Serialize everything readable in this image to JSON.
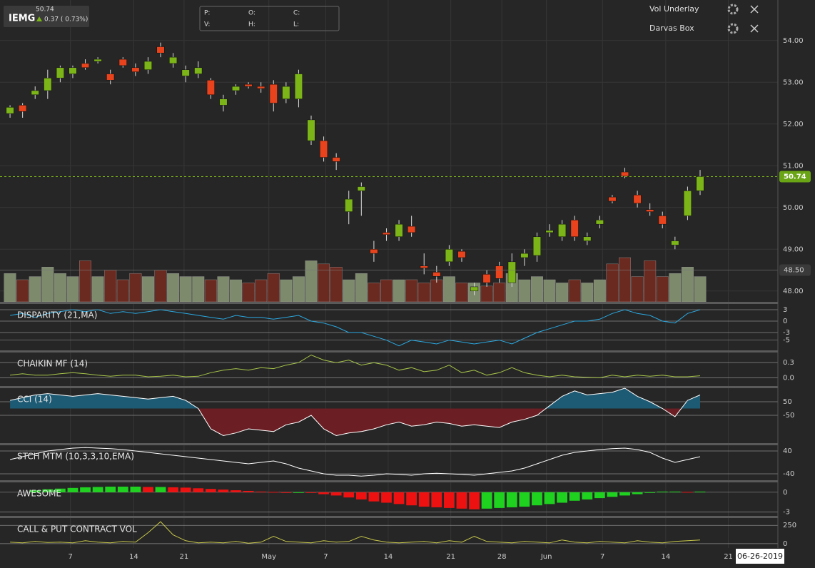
{
  "header": {
    "last": "50.74",
    "ticker": "IEMG",
    "change": "0.37 ( 0.73%)"
  },
  "ohlc_labels": [
    "P:",
    "O:",
    "C:",
    "V:",
    "H:",
    "L:"
  ],
  "studies": [
    "Vol Underlay",
    "Darvas Box"
  ],
  "date": "06-26-2019",
  "chart": {
    "type": "candlestick",
    "grid": true,
    "ylim": [
      47.74,
      54.97
    ],
    "yticks": [
      {
        "value": 54,
        "label": "54.00"
      },
      {
        "value": 53,
        "label": "53.00"
      },
      {
        "value": 52,
        "label": "52.00"
      },
      {
        "value": 51,
        "label": "51.00"
      },
      {
        "value": 50,
        "label": "50.00"
      },
      {
        "value": 49,
        "label": "49.00"
      },
      {
        "value": 48,
        "label": "48.00"
      }
    ],
    "xlim": [
      -0.8,
      61.2
    ],
    "xticks": [
      {
        "value": 4.81,
        "label": "7"
      },
      {
        "value": 9.86,
        "label": "14"
      },
      {
        "value": 13.87,
        "label": "21"
      },
      {
        "value": 20.63,
        "label": "May"
      },
      {
        "value": 25.16,
        "label": "7"
      },
      {
        "value": 30.14,
        "label": "14"
      },
      {
        "value": 35.13,
        "label": "21"
      },
      {
        "value": 39.2,
        "label": "28"
      },
      {
        "value": 42.75,
        "label": "Jun"
      },
      {
        "value": 47.22,
        "label": "7"
      },
      {
        "value": 52.26,
        "label": "14"
      },
      {
        "value": 57.25,
        "label": "21"
      }
    ],
    "up_color": "#7cb518",
    "down_color": "#e8431c",
    "volume_up_color": "#7d8a6c",
    "volume_down_color": "#6b2a20",
    "last_price": {
      "value": 50.74,
      "label": "50.74"
    },
    "marker": {
      "value": 48.5,
      "label": "48.50"
    },
    "candles": [
      [
        52.25,
        52.45,
        52.15,
        52.4
      ],
      [
        52.45,
        52.5,
        52.15,
        52.3
      ],
      [
        52.7,
        52.9,
        52.6,
        52.8
      ],
      [
        52.8,
        53.3,
        52.6,
        53.1
      ],
      [
        53.1,
        53.4,
        53.0,
        53.35
      ],
      [
        53.2,
        53.4,
        53.1,
        53.35
      ],
      [
        53.45,
        53.55,
        53.3,
        53.35
      ],
      [
        53.5,
        53.6,
        53.45,
        53.55
      ],
      [
        53.2,
        53.3,
        52.95,
        53.05
      ],
      [
        53.55,
        53.6,
        53.35,
        53.4
      ],
      [
        53.35,
        53.45,
        53.15,
        53.25
      ],
      [
        53.3,
        53.6,
        53.2,
        53.5
      ],
      [
        53.85,
        53.95,
        53.6,
        53.7
      ],
      [
        53.45,
        53.7,
        53.35,
        53.6
      ],
      [
        53.15,
        53.4,
        53.0,
        53.3
      ],
      [
        53.2,
        53.5,
        53.1,
        53.35
      ],
      [
        53.05,
        53.1,
        52.6,
        52.7
      ],
      [
        52.45,
        52.7,
        52.3,
        52.6
      ],
      [
        52.8,
        52.95,
        52.7,
        52.9
      ],
      [
        52.95,
        53.0,
        52.85,
        52.9
      ],
      [
        52.9,
        53.0,
        52.75,
        52.85
      ],
      [
        52.95,
        53.05,
        52.3,
        52.5
      ],
      [
        52.6,
        53.0,
        52.5,
        52.9
      ],
      [
        52.6,
        53.3,
        52.4,
        53.2
      ],
      [
        51.6,
        52.2,
        51.5,
        52.1
      ],
      [
        51.6,
        51.7,
        51.1,
        51.2
      ],
      [
        51.2,
        51.3,
        50.9,
        51.1
      ],
      [
        49.9,
        50.4,
        49.6,
        50.2
      ],
      [
        50.4,
        50.6,
        49.8,
        50.5
      ],
      [
        49.0,
        49.2,
        48.7,
        48.9
      ],
      [
        49.4,
        49.5,
        49.2,
        49.35
      ],
      [
        49.3,
        49.7,
        49.2,
        49.6
      ],
      [
        49.55,
        49.8,
        49.3,
        49.4
      ],
      [
        48.6,
        48.9,
        48.4,
        48.55
      ],
      [
        48.45,
        48.6,
        48.2,
        48.35
      ],
      [
        48.7,
        49.1,
        48.6,
        49.0
      ],
      [
        48.95,
        49.0,
        48.7,
        48.8
      ],
      [
        48.0,
        48.2,
        47.9,
        48.1
      ],
      [
        48.4,
        48.5,
        48.1,
        48.2
      ],
      [
        48.6,
        48.7,
        48.2,
        48.3
      ],
      [
        48.2,
        48.9,
        48.1,
        48.7
      ],
      [
        48.8,
        49.0,
        48.6,
        48.9
      ],
      [
        48.85,
        49.4,
        48.7,
        49.3
      ],
      [
        49.4,
        49.6,
        49.3,
        49.45
      ],
      [
        49.3,
        49.7,
        49.2,
        49.6
      ],
      [
        49.7,
        49.8,
        49.2,
        49.3
      ],
      [
        49.2,
        49.4,
        49.1,
        49.3
      ],
      [
        49.6,
        49.8,
        49.5,
        49.7
      ],
      [
        50.25,
        50.3,
        50.1,
        50.15
      ],
      [
        50.85,
        50.95,
        50.7,
        50.75
      ],
      [
        50.3,
        50.4,
        50.0,
        50.1
      ],
      [
        49.95,
        50.1,
        49.8,
        49.9
      ],
      [
        49.8,
        49.9,
        49.5,
        49.6
      ],
      [
        49.1,
        49.3,
        49.0,
        49.2
      ],
      [
        49.8,
        50.5,
        49.7,
        50.4
      ],
      [
        50.4,
        50.9,
        50.3,
        50.74
      ]
    ],
    "volume": [
      45,
      35,
      40,
      55,
      45,
      40,
      65,
      40,
      50,
      35,
      45,
      40,
      50,
      45,
      40,
      40,
      35,
      40,
      35,
      30,
      35,
      45,
      35,
      40,
      65,
      60,
      55,
      35,
      45,
      30,
      35,
      35,
      35,
      30,
      35,
      40,
      30,
      30,
      25,
      30,
      45,
      35,
      40,
      35,
      30,
      35,
      30,
      35,
      60,
      70,
      40,
      65,
      40,
      45,
      55,
      40
    ]
  },
  "panels": [
    {
      "title": "DISPARITY (21,MA)",
      "type": "line",
      "color": "#2aa8e0",
      "ylim": [
        -7.5,
        4.5
      ],
      "yticks": [
        3,
        0,
        -3,
        -5
      ],
      "values": [
        1.5,
        2,
        1,
        2,
        2.5,
        3,
        2.5,
        3,
        2,
        2.5,
        2,
        2.5,
        3,
        2.5,
        2,
        1.5,
        1,
        0.5,
        1.5,
        1,
        1,
        0.5,
        1,
        1.5,
        0,
        -0.5,
        -1.5,
        -3,
        -3,
        -4,
        -5,
        -6.5,
        -5,
        -5.5,
        -6,
        -5,
        -5.5,
        -6,
        -5.5,
        -5,
        -6,
        -4.5,
        -3,
        -2,
        -1,
        0,
        0,
        0.5,
        2,
        3,
        2,
        1.5,
        0,
        -0.5,
        2,
        3
      ]
    },
    {
      "title": "CHAIKIN MF (14)",
      "type": "line",
      "color": "#a8c64a",
      "ylim": [
        -0.15,
        0.5
      ],
      "yticks": [
        0.3,
        {
          "value": 0,
          "label": "0.0"
        }
      ],
      "values": [
        0.05,
        0.08,
        0.05,
        0.05,
        0.08,
        0.1,
        0.08,
        0.05,
        0.03,
        0.05,
        0.05,
        0.02,
        0.03,
        0.05,
        0.02,
        0.03,
        0.1,
        0.15,
        0.18,
        0.15,
        0.2,
        0.18,
        0.25,
        0.3,
        0.45,
        0.35,
        0.3,
        0.35,
        0.25,
        0.3,
        0.25,
        0.15,
        0.2,
        0.12,
        0.15,
        0.25,
        0.1,
        0.15,
        0.05,
        0.1,
        0.2,
        0.1,
        0.05,
        0.02,
        0.05,
        0.02,
        0.01,
        0.0,
        0.05,
        0.02,
        0.05,
        0.03,
        0.05,
        0.02,
        0.02,
        0.04
      ]
    },
    {
      "title": "CCI (14)",
      "type": "area",
      "color": "#ffffff",
      "pos_color": "#1d5a73",
      "neg_color": "#6b1f24",
      "ylim": [
        -250,
        150
      ],
      "yticks": [
        50,
        -50
      ],
      "values": [
        60,
        80,
        100,
        110,
        100,
        90,
        100,
        110,
        100,
        90,
        80,
        70,
        80,
        90,
        60,
        0,
        -150,
        -200,
        -180,
        -150,
        -160,
        -170,
        -120,
        -100,
        -50,
        -150,
        -200,
        -180,
        -170,
        -150,
        -120,
        -100,
        -130,
        -120,
        -100,
        -110,
        -130,
        -120,
        -130,
        -140,
        -100,
        -80,
        -50,
        20,
        90,
        130,
        100,
        110,
        120,
        150,
        90,
        50,
        0,
        -60,
        60,
        100
      ]
    },
    {
      "title": "STCH MTM (10,3,3,10,EMA)",
      "type": "line",
      "color": "#ffffff",
      "ylim": [
        -60,
        60
      ],
      "yticks": [
        40,
        -40
      ],
      "values": [
        10,
        20,
        30,
        40,
        45,
        50,
        52,
        50,
        48,
        45,
        40,
        35,
        30,
        25,
        20,
        15,
        10,
        5,
        0,
        -5,
        0,
        5,
        -5,
        -20,
        -30,
        -40,
        -45,
        -45,
        -48,
        -45,
        -40,
        -42,
        -45,
        -40,
        -38,
        -40,
        -42,
        -45,
        -40,
        -35,
        -30,
        -20,
        -5,
        10,
        25,
        35,
        40,
        45,
        48,
        50,
        45,
        35,
        15,
        0,
        10,
        20
      ]
    },
    {
      "title": "AWESOME",
      "type": "histogram",
      "up_color": "#1fd21f",
      "down_color": "#ee1111",
      "ylim": [
        -3.5,
        1.5
      ],
      "yticks": [
        0,
        -3
      ],
      "values": [
        null,
        null,
        0.3,
        0.45,
        0.55,
        0.65,
        0.75,
        0.8,
        0.85,
        0.85,
        0.85,
        0.8,
        0.8,
        0.75,
        0.7,
        0.6,
        0.5,
        0.4,
        0.3,
        0.2,
        0.1,
        0.05,
        0,
        0,
        -0.1,
        -0.3,
        -0.5,
        -0.8,
        -1.1,
        -1.4,
        -1.6,
        -1.8,
        -2.0,
        -2.2,
        -2.3,
        -2.4,
        -2.5,
        -2.6,
        -2.5,
        -2.4,
        -2.3,
        -2.2,
        -2.0,
        -1.8,
        -1.6,
        -1.3,
        -1.1,
        -0.9,
        -0.7,
        -0.5,
        -0.3,
        -0.1,
        0.1,
        0.1,
        0.05,
        0.1
      ]
    },
    {
      "title": "CALL & PUT CONTRACT VOL",
      "type": "line",
      "color": "#c8c84a",
      "ylim": [
        -60,
        350
      ],
      "yticks": [
        250,
        0
      ],
      "values": [
        20,
        10,
        30,
        15,
        20,
        10,
        40,
        20,
        10,
        30,
        20,
        150,
        300,
        120,
        40,
        10,
        20,
        10,
        30,
        5,
        20,
        100,
        30,
        20,
        10,
        40,
        20,
        30,
        100,
        50,
        20,
        10,
        20,
        30,
        10,
        40,
        20,
        100,
        30,
        20,
        10,
        30,
        20,
        10,
        50,
        20,
        10,
        30,
        20,
        10,
        40,
        20,
        10,
        30,
        40,
        50
      ]
    }
  ]
}
